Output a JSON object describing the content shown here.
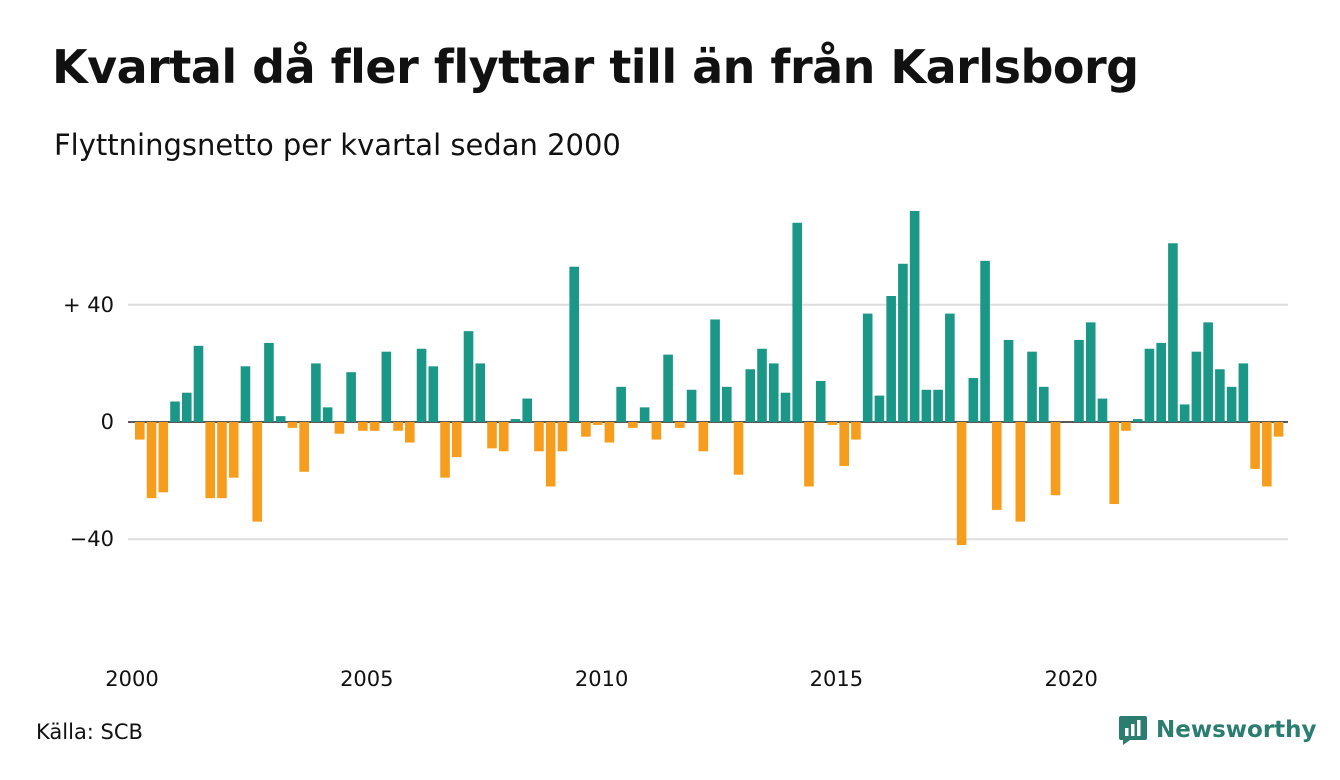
{
  "colors": {
    "positive": "#1a9787",
    "negative": "#f79d1e",
    "grid": "#dddddd",
    "brand": "#2a7d6f"
  },
  "source": "Källa: SCB",
  "brand": {
    "name": "Newsworthy",
    "icon": "newsworthy-logo-icon"
  },
  "chart_data": {
    "type": "bar",
    "title": "Kvartal då fler flyttar till än från Karlsborg",
    "subtitle": "Flyttningsnetto per kvartal sedan 2000",
    "xlabel": "",
    "ylabel": "",
    "ylim": [
      -70,
      75
    ],
    "y_ticks": [
      {
        "value": 40,
        "label": "+ 40"
      },
      {
        "value": 0,
        "label": "0"
      },
      {
        "value": -40,
        "label": "−40"
      }
    ],
    "x_ticks": [
      {
        "value": 2000,
        "label": "2000"
      },
      {
        "value": 2005,
        "label": "2005"
      },
      {
        "value": 2010,
        "label": "2010"
      },
      {
        "value": 2015,
        "label": "2015"
      },
      {
        "value": 2020,
        "label": "2020"
      }
    ],
    "grid": true,
    "start": "2000 Q1",
    "values": [
      -6,
      -26,
      -24,
      7,
      10,
      26,
      -26,
      -26,
      -19,
      19,
      -34,
      27,
      2,
      -2,
      -17,
      20,
      5,
      -4,
      17,
      -3,
      -3,
      24,
      -3,
      -7,
      25,
      19,
      -19,
      -12,
      31,
      20,
      -9,
      -10,
      1,
      8,
      -10,
      -22,
      -10,
      53,
      -5,
      -1,
      -7,
      12,
      -2,
      5,
      -6,
      23,
      -2,
      11,
      -10,
      35,
      12,
      -18,
      18,
      25,
      20,
      10,
      68,
      -22,
      14,
      -1,
      -15,
      -6,
      37,
      9,
      43,
      54,
      72,
      11,
      11,
      37,
      -42,
      15,
      55,
      -30,
      28,
      -34,
      24,
      12,
      -25,
      0,
      28,
      34,
      8,
      -28,
      -3,
      1,
      25,
      27,
      61,
      6,
      24,
      34,
      18,
      12,
      20,
      -16,
      -22,
      -5
    ]
  }
}
